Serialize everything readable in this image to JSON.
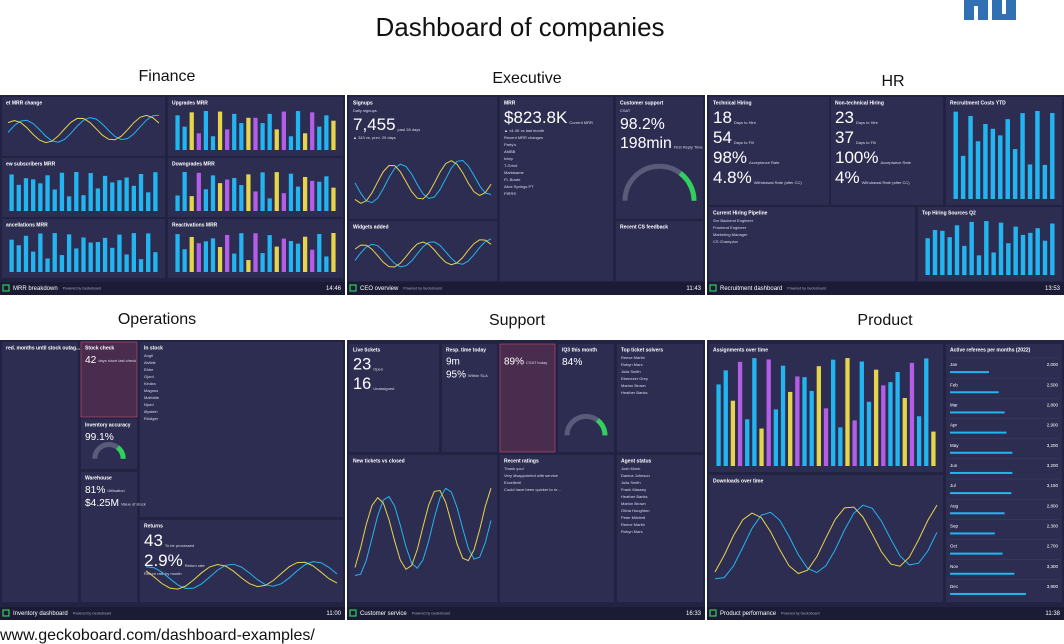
{
  "header": {
    "title": "Dashboard of companies"
  },
  "source": "www.geckoboard.com/dashboard-examples/",
  "powered": "Powered by Geckoboard",
  "dashboards": [
    {
      "label": "Finance",
      "footer": "MRR breakdown",
      "time": "14:46",
      "widgets": [
        {
          "title": "et MRR change",
          "texts": []
        },
        {
          "title": "Upgrades MRR",
          "texts": []
        },
        {
          "title": "ew subscribers MRR",
          "texts": []
        },
        {
          "title": "Downgrades MRR",
          "texts": []
        },
        {
          "title": "ancellations MRR",
          "texts": []
        },
        {
          "title": "Reactivations MRR",
          "texts": []
        }
      ]
    },
    {
      "label": "Executive",
      "footer": "CEO overview",
      "time": "11:43",
      "widgets": [
        {
          "title": "Signups",
          "texts": [
            "Daily signups",
            "7,455",
            "past 28 days",
            "▲ 343 vs. prev. 29 days"
          ]
        },
        {
          "title": "MRR",
          "texts": [
            "$823.8K",
            "Current MRR",
            "▲ ±4.4K vs last month",
            "Recent MRR changes",
            "Party's",
            "AMBB",
            "Intep",
            "T-Grind",
            "Marktsame",
            "FL Bowie",
            "Alice Springs PT",
            "FIRRS"
          ]
        },
        {
          "title": "Customer support",
          "texts": [
            "CSAT",
            "98.2%",
            "198min",
            "First Reply Time"
          ]
        },
        {
          "title": "Widgets added",
          "texts": []
        },
        {
          "title": "Recent CS feedback",
          "texts": []
        }
      ]
    },
    {
      "label": "HR",
      "footer": "Recruitment dashboard",
      "time": "13:53",
      "widgets": [
        {
          "title": "Technical Hiring",
          "texts": [
            "18",
            "Days to Hire",
            "54",
            "Days to Fill",
            "98%",
            "Acceptance Rate",
            "4.8%",
            "Withdrawal Rate (after CC)"
          ]
        },
        {
          "title": "Non-technical Hiring",
          "texts": [
            "23",
            "Days to Hire",
            "37",
            "Days to Fill",
            "100%",
            "Acceptance Rate",
            "4%",
            "Withdrawal Rate (after CC)"
          ]
        },
        {
          "title": "Recruitment Costs YTD",
          "texts": []
        },
        {
          "title": "Current Hiring Pipeline",
          "texts": [
            "Snr Backend Engineer",
            "Frontend Engineer",
            "Marketing Manager",
            "CS Champion"
          ]
        },
        {
          "title": "Top Hiring Sources Q2",
          "texts": []
        }
      ]
    },
    {
      "label": "Operations",
      "footer": "Inventory dashboard",
      "time": "11:00",
      "widgets": [
        {
          "title": "red. months until stock outag...",
          "texts": []
        },
        {
          "title": "Stock check",
          "texts": [
            "42",
            "days since last check"
          ]
        },
        {
          "title": "In stock",
          "texts": [
            "Angli",
            "Alvilde",
            "Ebbe",
            "Gjord",
            "Kindra",
            "Magnus",
            "Mathilde",
            "Njord",
            "Øystein",
            "Rüdiger"
          ]
        },
        {
          "title": "Inventory accuracy",
          "texts": [
            "99.1%"
          ]
        },
        {
          "title": "Warehouse",
          "texts": [
            "81%",
            "Utilisation",
            "$4.25M",
            "Value of stock"
          ]
        },
        {
          "title": "Returns",
          "texts": [
            "43",
            "To be processed",
            "2.9%",
            "Return rate",
            "Return rate by month"
          ]
        }
      ]
    },
    {
      "label": "Support",
      "footer": "Customer service",
      "time": "16:33",
      "widgets": [
        {
          "title": "Live tickets",
          "texts": [
            "23",
            "Open",
            "16",
            "Unassigned"
          ]
        },
        {
          "title": "Resp. time today",
          "texts": [
            "9m",
            "95%",
            "Within SLA"
          ]
        },
        {
          "title": "",
          "texts": [
            "89%",
            "CSAT today"
          ]
        },
        {
          "title": "IQ3 this month",
          "texts": [
            "84%"
          ]
        },
        {
          "title": "Top ticket solvers",
          "texts": [
            "Reece Martin",
            "Robyn Mars",
            "Julia Smith",
            "Ebenezer Grey",
            "Marlon Brown",
            "Heather Banks"
          ]
        },
        {
          "title": "New tickets vs closed",
          "texts": []
        },
        {
          "title": "Recent ratings",
          "texts": [
            "Thank you!",
            "Very disappointed with service",
            "Excellent!",
            "Could have been quicker to re..."
          ]
        },
        {
          "title": "Agent status",
          "texts": [
            "Josh Monk",
            "Danica Johnson",
            "Julia Smith",
            "Frank Massey",
            "Heather Banks",
            "Marlon Brown",
            "Olivia Houghton",
            "Peter Mitchell",
            "Reece Martin",
            "Robyn Mars"
          ]
        }
      ]
    },
    {
      "label": "Product",
      "footer": "Product performance",
      "time": "11:38",
      "widgets": [
        {
          "title": "Assignments over time",
          "texts": []
        },
        {
          "title": "Active referees per months (2022)",
          "texts": [],
          "categories": [
            "Jan",
            "Feb",
            "Mar",
            "Apr",
            "May",
            "Jun",
            "Jul",
            "Aug",
            "Sep",
            "Oct",
            "Nov",
            "Dec"
          ],
          "values": [
            2000,
            2500,
            2800,
            2900,
            3200,
            3200,
            3150,
            2800,
            2300,
            2700,
            3300,
            3900
          ],
          "value_labels": [
            "2,000",
            "2,500",
            "2,800",
            "2,900",
            "3,200",
            "3,200",
            "3,150",
            "2,800",
            "2,300",
            "2,700",
            "3,300",
            "3,900"
          ]
        },
        {
          "title": "Downloads over time",
          "texts": []
        }
      ]
    }
  ]
}
